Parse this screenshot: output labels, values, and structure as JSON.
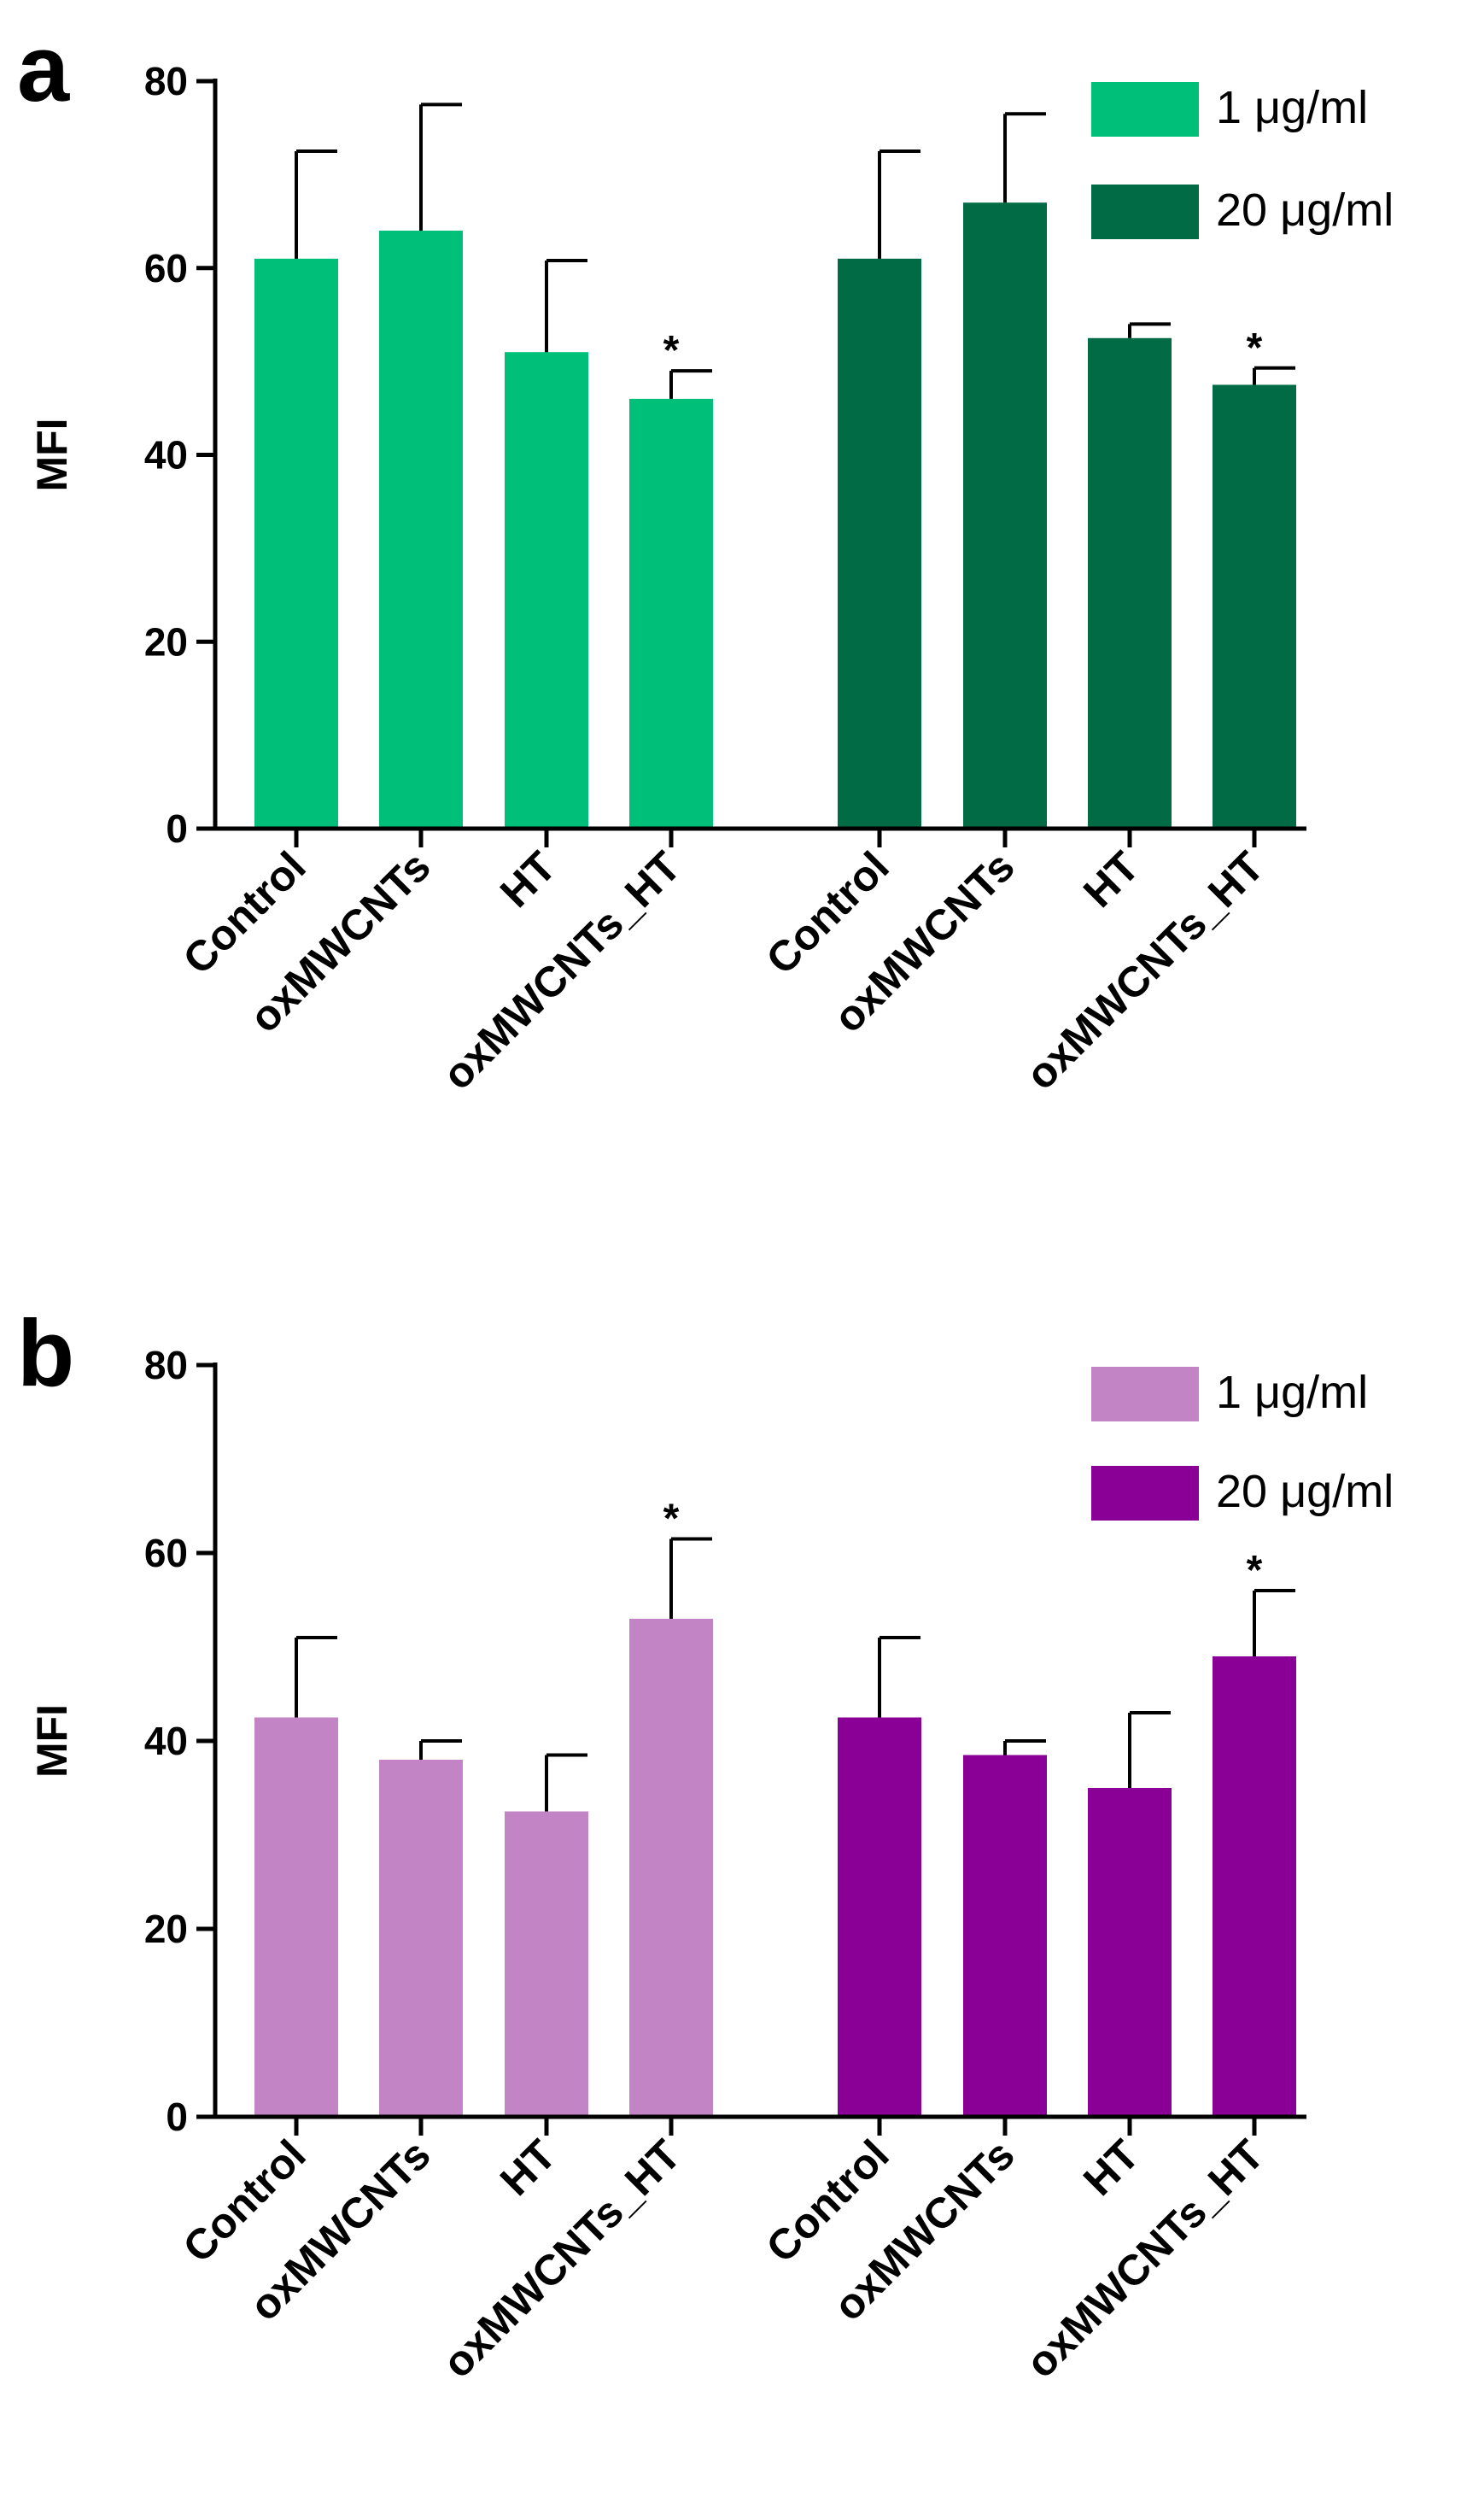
{
  "chart_data": [
    {
      "type": "bar",
      "panel": "a",
      "ylabel": "MFI",
      "ylim": [
        0,
        80
      ],
      "yticks": [
        0,
        20,
        40,
        60,
        80
      ],
      "grid": false,
      "legend_position": "top-right",
      "categories": [
        "Control",
        "oxMWCNTs",
        "HT",
        "oxMWCNTs_HT"
      ],
      "series": [
        {
          "name": "1 μg/ml",
          "color": "#00bf78",
          "values": [
            61,
            64,
            51,
            46
          ],
          "errors": [
            11.5,
            13.5,
            9.8,
            3
          ],
          "significance": [
            "",
            "",
            "",
            "*"
          ]
        },
        {
          "name": "20 μg/ml",
          "color": "#006b44",
          "values": [
            61,
            67,
            52.5,
            47.5
          ],
          "errors": [
            11.5,
            9.5,
            1.5,
            1.8
          ],
          "significance": [
            "",
            "",
            "",
            "*"
          ]
        }
      ]
    },
    {
      "type": "bar",
      "panel": "b",
      "ylabel": "MFI",
      "ylim": [
        0,
        80
      ],
      "yticks": [
        0,
        20,
        40,
        60,
        80
      ],
      "grid": false,
      "legend_position": "top-right",
      "categories": [
        "Control",
        "oxMWCNTs",
        "HT",
        "oxMWCNTs_HT"
      ],
      "series": [
        {
          "name": "1 μg/ml",
          "color": "#c384c6",
          "values": [
            42.5,
            38,
            32.5,
            53
          ],
          "errors": [
            8.5,
            2,
            6,
            8.5
          ],
          "significance": [
            "",
            "",
            "",
            "*"
          ]
        },
        {
          "name": "20 μg/ml",
          "color": "#8a0096",
          "values": [
            42.5,
            38.5,
            35,
            49
          ],
          "errors": [
            8.5,
            1.5,
            8,
            7
          ],
          "significance": [
            "",
            "",
            "",
            "*"
          ]
        }
      ]
    }
  ]
}
